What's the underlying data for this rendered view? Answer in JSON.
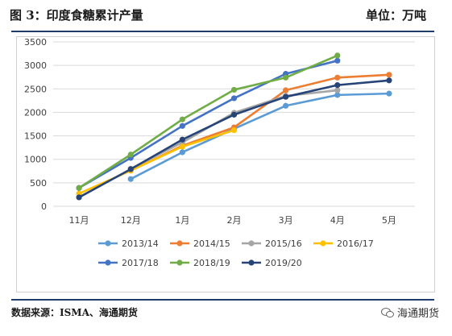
{
  "header": {
    "title": "图 3：印度食糖累计产量",
    "unit": "单位：万吨"
  },
  "footer": {
    "source": "数据来源：ISMA、海通期货",
    "watermark": "海通期货"
  },
  "colors": {
    "rule": "#1f3d6b",
    "grid": "#d9d9d9"
  },
  "chart_data": {
    "type": "line",
    "title": "",
    "xlabel": "",
    "ylabel": "",
    "categories": [
      "11月",
      "12月",
      "1月",
      "2月",
      "3月",
      "4月",
      "5月"
    ],
    "ylim": [
      0,
      3500
    ],
    "yticks": [
      0,
      500,
      1000,
      1500,
      2000,
      2500,
      3000,
      3500
    ],
    "grid": true,
    "legend_position": "bottom",
    "series": [
      {
        "name": "2013/14",
        "color": "#5b9bd5",
        "values": [
          null,
          580,
          1150,
          1650,
          2140,
          2370,
          2400
        ]
      },
      {
        "name": "2014/15",
        "color": "#ed7d31",
        "values": [
          null,
          760,
          1290,
          1680,
          2470,
          2740,
          2800
        ]
      },
      {
        "name": "2015/16",
        "color": "#a5a5a5",
        "values": [
          null,
          800,
          1360,
          1990,
          2350,
          2470,
          null
        ]
      },
      {
        "name": "2016/17",
        "color": "#ffc000",
        "values": [
          270,
          760,
          1270,
          1620,
          null,
          null,
          null
        ]
      },
      {
        "name": "2017/18",
        "color": "#4472c4",
        "values": [
          390,
          1030,
          1710,
          2300,
          2820,
          3100,
          null
        ]
      },
      {
        "name": "2018/19",
        "color": "#70ad47",
        "values": [
          390,
          1100,
          1850,
          2480,
          2740,
          3210,
          null
        ]
      },
      {
        "name": "2019/20",
        "color": "#264478",
        "values": [
          190,
          790,
          1420,
          1950,
          2330,
          2580,
          2680
        ]
      }
    ]
  }
}
